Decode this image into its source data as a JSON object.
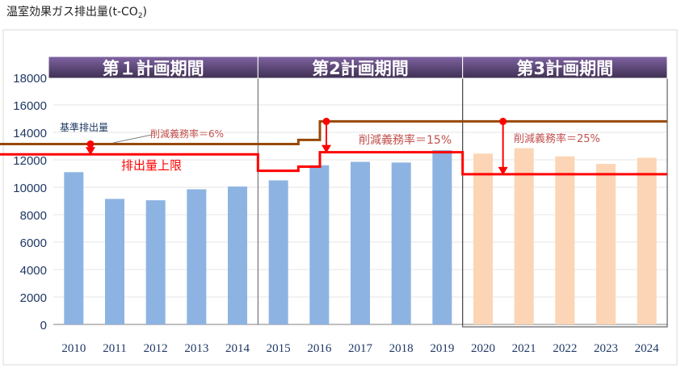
{
  "title_prefix": "温室効果ガス排出量(t-CO",
  "title_sub": "2",
  "title_suffix": ")",
  "chart_data": {
    "type": "bar",
    "categories": [
      "2010",
      "2011",
      "2012",
      "2013",
      "2014",
      "2015",
      "2016",
      "2017",
      "2018",
      "2019",
      "2020",
      "2021",
      "2022",
      "2023",
      "2024"
    ],
    "values": [
      11100,
      9150,
      9050,
      9850,
      10050,
      10500,
      11600,
      11850,
      11800,
      12700,
      12450,
      12850,
      12250,
      11700,
      12150
    ],
    "bar_colors": [
      "#8DB3E2",
      "#8DB3E2",
      "#8DB3E2",
      "#8DB3E2",
      "#8DB3E2",
      "#8DB3E2",
      "#8DB3E2",
      "#8DB3E2",
      "#8DB3E2",
      "#8DB3E2",
      "#FBD5B5",
      "#FBD5B5",
      "#FBD5B5",
      "#FBD5B5",
      "#FBD5B5"
    ],
    "ylim": [
      0,
      18000
    ],
    "yticks": [
      0,
      2000,
      4000,
      6000,
      8000,
      10000,
      12000,
      14000,
      16000,
      18000
    ],
    "periods": [
      {
        "label": "第１計画期間",
        "start_year": "2010",
        "end_year": "2014"
      },
      {
        "label": "第2計画期間",
        "start_year": "2015",
        "end_year": "2019"
      },
      {
        "label": "第3計画期間",
        "start_year": "2020",
        "end_year": "2024"
      }
    ],
    "baseline": {
      "label": "基準排出量",
      "color": "#984807",
      "steps": [
        {
          "from": "2010",
          "to": "2014",
          "value": 13150
        },
        {
          "from": "2015",
          "to": "2016",
          "value": 13450
        },
        {
          "from": "2016",
          "to": "2024",
          "value": 14800
        }
      ]
    },
    "cap": {
      "label": "排出量上限",
      "color": "#FF0000",
      "steps": [
        {
          "from": "2010",
          "to": "2014",
          "value": 12400
        },
        {
          "from": "2015",
          "to": "2016",
          "value": 11200
        },
        {
          "from": "2016",
          "to": "2016",
          "value": 11500
        },
        {
          "from": "2016",
          "to": "2019",
          "value": 12550
        },
        {
          "from": "2020",
          "to": "2024",
          "value": 10950
        }
      ]
    },
    "annotations": [
      {
        "text": "削減義務率＝6%",
        "period": 0
      },
      {
        "text": "削減義務率＝15%",
        "period": 1
      },
      {
        "text": "削減義務率＝25%",
        "period": 2
      }
    ]
  }
}
